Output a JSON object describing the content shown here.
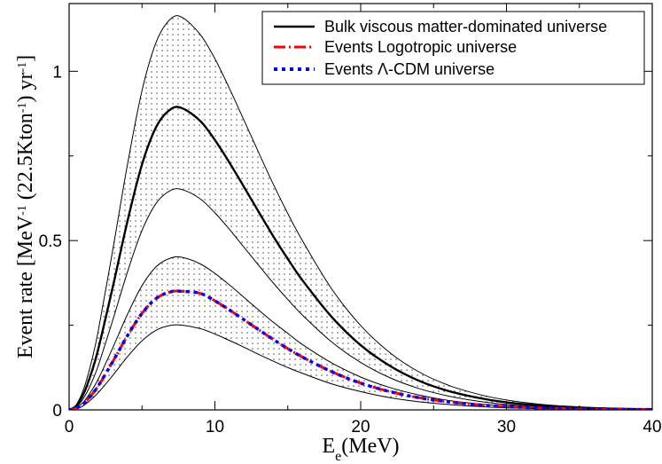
{
  "chart_data": {
    "type": "line",
    "xlim": [
      0,
      40
    ],
    "ylim": [
      0,
      1.2
    ],
    "x_ticks": [
      "0",
      "10",
      "20",
      "30",
      "40"
    ],
    "y_ticks": [
      "0",
      "0.5",
      "1"
    ],
    "x_tick_values": [
      0,
      10,
      20,
      30,
      40
    ],
    "y_tick_values": [
      0,
      0.5,
      1
    ],
    "xlabel": {
      "main": "E",
      "sub": "e",
      "rest": "(MeV)"
    },
    "ylabel": {
      "p1": "Event rate [MeV",
      "s1": "-1",
      "p2": " (22.5Kton",
      "s2": "-1",
      "p3": ") yr",
      "s3": "-1",
      "p4": "]"
    },
    "legend_position": "top-right",
    "peak_energy_mev": 7.8,
    "band_fill": "dotted",
    "x": [
      0,
      0.5,
      1,
      1.5,
      2,
      3,
      4,
      5,
      6,
      7,
      7.8,
      9,
      10,
      11,
      12,
      13,
      14,
      15,
      16,
      18,
      20,
      22,
      24,
      26,
      28,
      30,
      32,
      34,
      36,
      38,
      40
    ],
    "series": [
      {
        "name": "Bulk viscous matter-dominated universe",
        "role": "central",
        "color": "#000000",
        "style": "solid",
        "width": 2.4,
        "values": [
          0,
          0.012,
          0.048,
          0.106,
          0.18,
          0.364,
          0.557,
          0.725,
          0.838,
          0.889,
          0.89,
          0.853,
          0.797,
          0.73,
          0.658,
          0.585,
          0.513,
          0.446,
          0.383,
          0.275,
          0.191,
          0.13,
          0.086,
          0.056,
          0.036,
          0.022,
          0.014,
          0.009,
          0.005,
          0.003,
          0.002
        ]
      },
      {
        "name": "Band upper limit",
        "role": "band-outer-upper",
        "color": "#000000",
        "style": "solid",
        "width": 1,
        "values": [
          0,
          0.016,
          0.062,
          0.137,
          0.234,
          0.474,
          0.724,
          0.943,
          1.089,
          1.156,
          1.158,
          1.108,
          1.037,
          0.949,
          0.855,
          0.76,
          0.667,
          0.58,
          0.5,
          0.358,
          0.249,
          0.169,
          0.112,
          0.073,
          0.047,
          0.029,
          0.018,
          0.011,
          0.007,
          0.004,
          0.002
        ]
      },
      {
        "name": "Band inner upper",
        "role": "band-inner-upper",
        "color": "#000000",
        "style": "solid",
        "width": 1,
        "values": [
          0,
          0.009,
          0.035,
          0.077,
          0.131,
          0.266,
          0.407,
          0.53,
          0.612,
          0.649,
          0.65,
          0.623,
          0.582,
          0.533,
          0.48,
          0.427,
          0.375,
          0.326,
          0.28,
          0.201,
          0.14,
          0.095,
          0.063,
          0.041,
          0.026,
          0.016,
          0.01,
          0.006,
          0.004,
          0.002,
          0.001
        ]
      },
      {
        "name": "Band inner lower",
        "role": "band-inner-lower",
        "color": "#000000",
        "style": "solid",
        "width": 1,
        "values": [
          0,
          0.006,
          0.024,
          0.054,
          0.091,
          0.184,
          0.282,
          0.367,
          0.424,
          0.449,
          0.45,
          0.431,
          0.403,
          0.369,
          0.332,
          0.295,
          0.259,
          0.226,
          0.193,
          0.139,
          0.097,
          0.066,
          0.044,
          0.028,
          0.018,
          0.011,
          0.007,
          0.004,
          0.003,
          0.002,
          0.001
        ]
      },
      {
        "name": "Band lower limit",
        "role": "band-outer-lower",
        "color": "#000000",
        "style": "solid",
        "width": 1,
        "values": [
          0,
          0.003,
          0.013,
          0.03,
          0.051,
          0.102,
          0.157,
          0.204,
          0.236,
          0.25,
          0.25,
          0.24,
          0.224,
          0.205,
          0.185,
          0.164,
          0.144,
          0.125,
          0.108,
          0.077,
          0.054,
          0.036,
          0.024,
          0.016,
          0.01,
          0.006,
          0.004,
          0.002,
          0.001,
          0.001,
          0
        ]
      },
      {
        "name": "Events Logotropic universe",
        "role": "logotropic",
        "color": "#ff0000",
        "style": "dashdot",
        "width": 3,
        "values": [
          0,
          0.005,
          0.019,
          0.042,
          0.071,
          0.143,
          0.219,
          0.285,
          0.33,
          0.349,
          0.35,
          0.344,
          0.322,
          0.295,
          0.266,
          0.237,
          0.208,
          0.181,
          0.156,
          0.113,
          0.079,
          0.054,
          0.036,
          0.024,
          0.015,
          0.01,
          0.006,
          0.004,
          0.002,
          0.001,
          0.001
        ]
      },
      {
        "name": "Events Λ-CDM universe",
        "role": "lcdm",
        "color": "#0000ff",
        "style": "dotted",
        "width": 3.5,
        "values": [
          0,
          0.005,
          0.019,
          0.042,
          0.071,
          0.143,
          0.219,
          0.285,
          0.33,
          0.349,
          0.35,
          0.344,
          0.322,
          0.295,
          0.266,
          0.237,
          0.208,
          0.181,
          0.156,
          0.113,
          0.079,
          0.054,
          0.036,
          0.024,
          0.015,
          0.01,
          0.006,
          0.004,
          0.002,
          0.001,
          0.001
        ]
      }
    ],
    "legend": [
      {
        "label": "Bulk viscous matter-dominated universe",
        "color": "#000000",
        "style": "solid"
      },
      {
        "label": "Events Logotropic universe",
        "color": "#ff0000",
        "style": "dashdot"
      },
      {
        "label": "Events Λ-CDM universe",
        "color": "#0000ff",
        "style": "dotted"
      }
    ]
  }
}
